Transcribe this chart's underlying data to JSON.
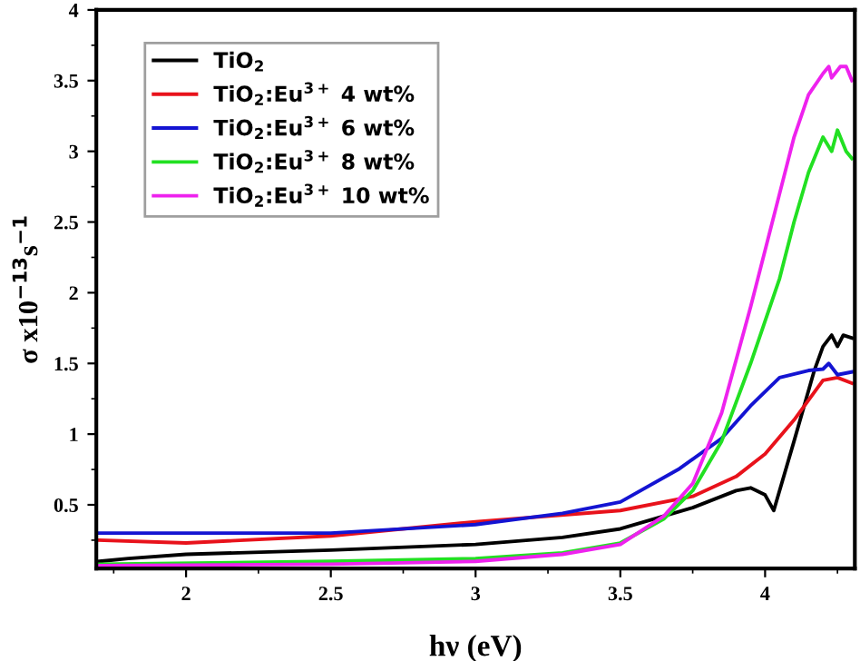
{
  "chart_data": {
    "type": "line",
    "xlabel": "hν (eV)",
    "ylabel": "σ x10$^{−13}$s$^{−1}$",
    "xlim": [
      1.69,
      4.31
    ],
    "ylim": [
      0.05,
      4
    ],
    "xticks": [
      2,
      2.5,
      3,
      3.5,
      4
    ],
    "yticks": [
      0.5,
      1,
      1.5,
      2,
      2.5,
      3,
      3.5,
      4
    ],
    "grid": false,
    "legend": "top left",
    "marker": "none",
    "line_style": "solid",
    "series": [
      {
        "name": "TiO$_{2}$",
        "color": "#000000",
        "x": [
          1.7,
          1.8,
          2,
          2.5,
          3,
          3.3,
          3.5,
          3.75,
          3.9,
          3.95,
          4.0,
          4.03,
          4.1,
          4.17,
          4.2,
          4.23,
          4.25,
          4.27,
          4.3
        ],
        "values": [
          0.1,
          0.12,
          0.15,
          0.18,
          0.22,
          0.27,
          0.33,
          0.48,
          0.6,
          0.62,
          0.57,
          0.46,
          0.95,
          1.45,
          1.62,
          1.7,
          1.62,
          1.7,
          1.68
        ]
      },
      {
        "name": "TiO$_{2}$:Eu$^{3+}$ 4 wt%",
        "color": "#e8121b",
        "x": [
          1.7,
          2,
          2.5,
          3,
          3.5,
          3.75,
          3.9,
          4.0,
          4.1,
          4.2,
          4.25,
          4.3
        ],
        "values": [
          0.25,
          0.23,
          0.28,
          0.38,
          0.46,
          0.56,
          0.7,
          0.86,
          1.1,
          1.38,
          1.4,
          1.36
        ]
      },
      {
        "name": "TiO$_{2}$:Eu$^{3+}$ 6 wt%",
        "color": "#1414d2",
        "x": [
          1.7,
          2.5,
          3,
          3.3,
          3.5,
          3.7,
          3.85,
          3.95,
          4.05,
          4.15,
          4.2,
          4.22,
          4.25,
          4.3
        ],
        "values": [
          0.3,
          0.3,
          0.36,
          0.44,
          0.52,
          0.75,
          0.97,
          1.2,
          1.4,
          1.45,
          1.46,
          1.5,
          1.42,
          1.44
        ]
      },
      {
        "name": "TiO$_{2}$:Eu$^{3+}$ 8 wt%",
        "color": "#22e022",
        "x": [
          1.7,
          2.5,
          3,
          3.3,
          3.5,
          3.65,
          3.75,
          3.85,
          3.95,
          4.05,
          4.1,
          4.15,
          4.2,
          4.23,
          4.25,
          4.28,
          4.3
        ],
        "values": [
          0.08,
          0.1,
          0.12,
          0.16,
          0.23,
          0.4,
          0.6,
          0.95,
          1.5,
          2.1,
          2.5,
          2.85,
          3.1,
          3.0,
          3.15,
          3.0,
          2.95
        ]
      },
      {
        "name": "TiO$_{2}$:Eu$^{3+}$ 10 wt%",
        "color": "#ee22ee",
        "x": [
          1.7,
          2.5,
          3,
          3.3,
          3.5,
          3.65,
          3.75,
          3.85,
          3.95,
          4.05,
          4.1,
          4.15,
          4.2,
          4.22,
          4.23,
          4.26,
          4.28,
          4.3
        ],
        "values": [
          0.07,
          0.08,
          0.1,
          0.15,
          0.22,
          0.42,
          0.65,
          1.15,
          1.9,
          2.7,
          3.1,
          3.4,
          3.55,
          3.6,
          3.52,
          3.6,
          3.6,
          3.5
        ]
      }
    ]
  }
}
